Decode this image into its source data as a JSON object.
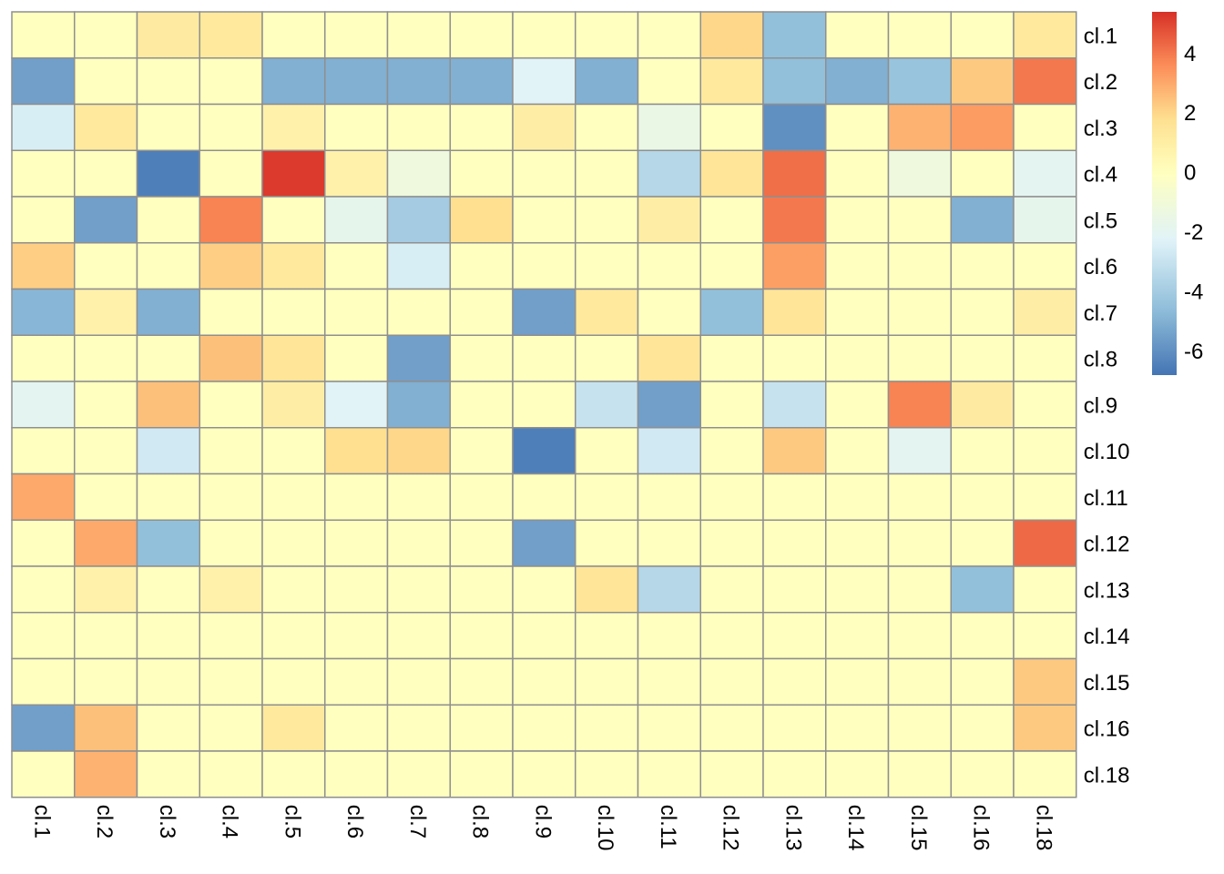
{
  "chart_data": {
    "type": "heatmap",
    "title": "",
    "xlabel": "",
    "ylabel": "",
    "rows": [
      "cl.1",
      "cl.2",
      "cl.3",
      "cl.4",
      "cl.5",
      "cl.6",
      "cl.7",
      "cl.8",
      "cl.9",
      "cl.10",
      "cl.11",
      "cl.12",
      "cl.13",
      "cl.14",
      "cl.15",
      "cl.16",
      "cl.18"
    ],
    "columns": [
      "cl.1",
      "cl.2",
      "cl.3",
      "cl.4",
      "cl.5",
      "cl.6",
      "cl.7",
      "cl.8",
      "cl.9",
      "cl.10",
      "cl.11",
      "cl.12",
      "cl.13",
      "cl.14",
      "cl.15",
      "cl.16",
      "cl.18"
    ],
    "values": [
      [
        0,
        0,
        1.2,
        1.3,
        0,
        0,
        0,
        0,
        0,
        0,
        0,
        2,
        -4.5,
        0,
        0,
        0,
        1.3
      ],
      [
        -5.5,
        0,
        0,
        0,
        -5,
        -5,
        -5,
        -5,
        -2.2,
        -5,
        0,
        1.3,
        -4.5,
        -5,
        -4.3,
        2.3,
        4
      ],
      [
        -2.5,
        1.3,
        0,
        0,
        0.8,
        0,
        0,
        0,
        1,
        0,
        -1.5,
        0,
        -6,
        0,
        2.8,
        3.3,
        0
      ],
      [
        0,
        0,
        -6.5,
        0,
        5.2,
        0.8,
        -1.2,
        0,
        0,
        0,
        -3.5,
        1.5,
        4.2,
        0,
        -1.2,
        0,
        -2
      ],
      [
        0,
        -5.5,
        0,
        3.8,
        0,
        -1.8,
        -4,
        1.8,
        0,
        0,
        1,
        0,
        4,
        0,
        0,
        -5,
        -1.8
      ],
      [
        2.2,
        0,
        0,
        2.2,
        1.3,
        0,
        -2.5,
        0,
        0,
        0,
        0,
        0,
        3.2,
        0,
        0,
        0,
        0
      ],
      [
        -4.8,
        0.8,
        -5,
        0,
        0,
        0,
        0,
        0,
        -5.5,
        1.3,
        0,
        -4.5,
        1.5,
        0,
        0,
        0,
        1
      ],
      [
        0,
        0,
        0,
        2.5,
        1.5,
        0,
        -5.5,
        0,
        0,
        0,
        1.5,
        0,
        0,
        0,
        0,
        0,
        0
      ],
      [
        -2,
        0,
        2.5,
        0,
        1,
        -2.2,
        -5,
        0,
        0,
        -3,
        -5.5,
        0,
        -3,
        0,
        3.8,
        1.2,
        0
      ],
      [
        0,
        0,
        -2.7,
        0,
        0,
        1.8,
        2,
        0,
        -6.5,
        0,
        -2.7,
        0,
        2.3,
        0,
        -2,
        0,
        0
      ],
      [
        3,
        0,
        0,
        0,
        0,
        0,
        0,
        0,
        0,
        0,
        0,
        0,
        0,
        0,
        0,
        0,
        0
      ],
      [
        0,
        3,
        -4.5,
        0,
        0,
        0,
        0,
        0,
        -5.5,
        0,
        0,
        0,
        0,
        0,
        0,
        0,
        4.3
      ],
      [
        0,
        0.8,
        0,
        0.8,
        0,
        0,
        0,
        0,
        0,
        1.5,
        -3.5,
        0,
        0,
        0,
        0,
        -4.5,
        0
      ],
      [
        0,
        0,
        0,
        0,
        0,
        0,
        0,
        0,
        0,
        0,
        0,
        0,
        0,
        0,
        0,
        0,
        0
      ],
      [
        0,
        0,
        0,
        0,
        0,
        0,
        0,
        0,
        0,
        0,
        0,
        0,
        0,
        0,
        0,
        0,
        2.3
      ],
      [
        -5.5,
        2.5,
        0,
        0,
        1.3,
        0,
        0,
        0,
        0,
        0,
        0,
        0,
        0,
        0,
        0,
        0,
        2.3
      ],
      [
        0,
        2.8,
        0,
        0,
        0,
        0,
        0,
        0,
        0,
        0,
        0,
        0,
        0,
        0,
        0,
        0,
        0
      ]
    ],
    "legend": {
      "placement": "right",
      "range": [
        -6.8,
        5.4
      ],
      "ticks": [
        4,
        2,
        0,
        -2,
        -4,
        -6
      ],
      "tick_labels": [
        "4",
        "2",
        "0",
        "-2",
        "-4",
        "-6"
      ],
      "colors": [
        "#4575b4",
        "#91bfdb",
        "#e0f3f8",
        "#ffffbf",
        "#fee090",
        "#fc8d59",
        "#d73027"
      ]
    },
    "grid": true,
    "grid_color": "#8f8f8f"
  }
}
